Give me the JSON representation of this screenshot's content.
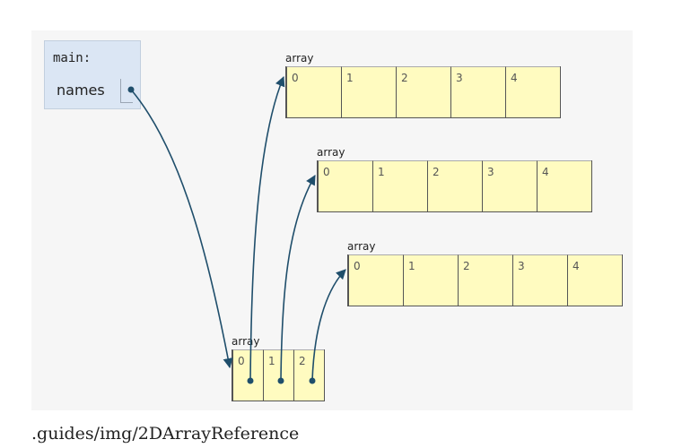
{
  "frame": {
    "title": "main:",
    "variable": "names"
  },
  "arrays": [
    {
      "label": "array",
      "indices": [
        "0",
        "1",
        "2",
        "3",
        "4"
      ]
    },
    {
      "label": "array",
      "indices": [
        "0",
        "1",
        "2",
        "3",
        "4"
      ]
    },
    {
      "label": "array",
      "indices": [
        "0",
        "1",
        "2",
        "3",
        "4"
      ]
    }
  ],
  "outer_array": {
    "label": "array",
    "indices": [
      "0",
      "1",
      "2"
    ]
  },
  "caption": ".guides/img/2DArrayReference",
  "colors": {
    "frame_bg": "#dbe6f4",
    "array_bg": "#fffbc0",
    "arrow": "#1f4e6b"
  }
}
